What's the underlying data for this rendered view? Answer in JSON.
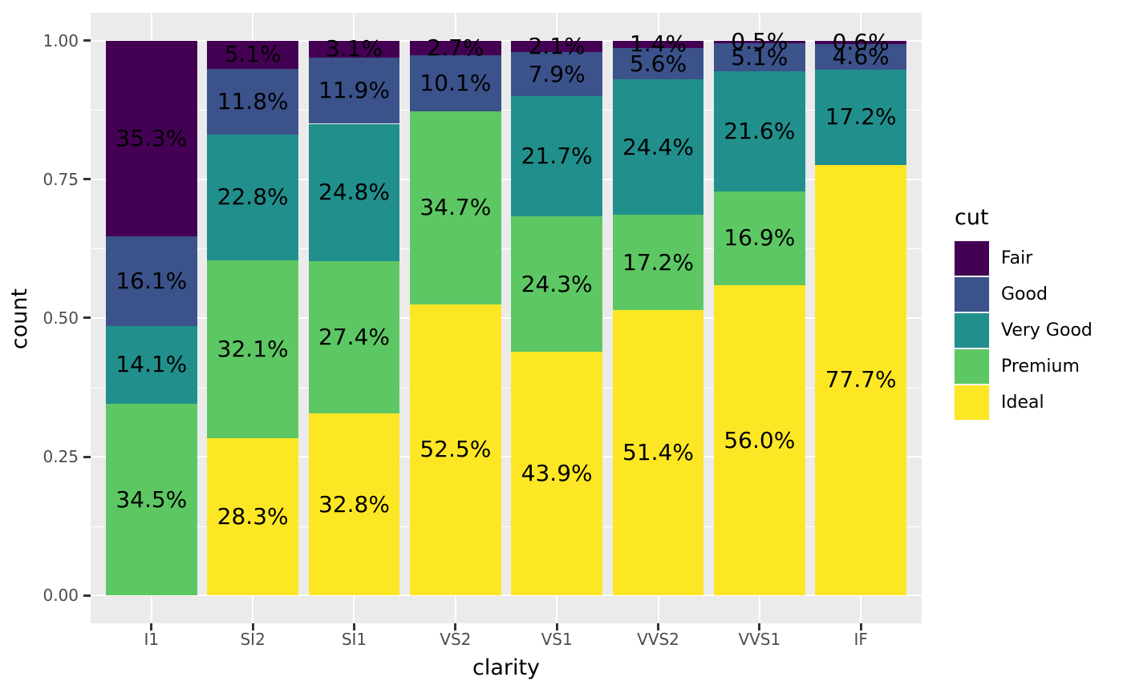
{
  "figure": {
    "background_color": "#FFFFFF",
    "panel_background_color": "#EBEBEB",
    "grid_color": "#FFFFFF",
    "tick_mark_color": "#333333",
    "tick_label_color": "#4D4D4D",
    "title_color": "#000000"
  },
  "axes": {
    "x_title": "clarity",
    "y_title": "count",
    "y_ticks": [
      {
        "label": "1.00",
        "value": 1.0
      },
      {
        "label": "0.75",
        "value": 0.75
      },
      {
        "label": "0.50",
        "value": 0.5
      },
      {
        "label": "0.25",
        "value": 0.25
      },
      {
        "label": "0.00",
        "value": 0.0
      }
    ],
    "y_minor_gridlines": [
      0.875,
      0.625,
      0.375,
      0.125
    ],
    "x_ticks": [
      "I1",
      "SI2",
      "SI1",
      "VS2",
      "VS1",
      "VVS2",
      "VVS1",
      "IF"
    ]
  },
  "legend": {
    "title": "cut",
    "position": "right",
    "entries": [
      {
        "label": "Fair",
        "color": "#440154"
      },
      {
        "label": "Good",
        "color": "#3B528B"
      },
      {
        "label": "Very Good",
        "color": "#21908C"
      },
      {
        "label": "Premium",
        "color": "#5DC863"
      },
      {
        "label": "Ideal",
        "color": "#FDE725"
      }
    ]
  },
  "chart_data": {
    "type": "bar",
    "stacking": "fill",
    "orientation": "vertical",
    "title": "",
    "xlabel": "clarity",
    "ylabel": "count",
    "ylim": [
      0,
      1
    ],
    "grid": true,
    "legend_title": "cut",
    "legend_position": "right",
    "value_label_format": "percent of column, one decimal",
    "categories": [
      "I1",
      "SI2",
      "SI1",
      "VS2",
      "VS1",
      "VVS2",
      "VVS1",
      "IF"
    ],
    "series_order_note": "listed top-to-bottom in each stacked column; Ideal is the bottom segment",
    "series": [
      {
        "name": "Fair",
        "color": "#440154",
        "values": [
          35.3,
          5.1,
          3.1,
          2.7,
          2.1,
          1.4,
          0.5,
          0.6
        ],
        "labels": [
          "35.3%",
          "5.1%",
          "3.1%",
          "2.7%",
          "2.1%",
          "1.4%",
          "0.5%",
          "0.6%"
        ]
      },
      {
        "name": "Good",
        "color": "#3B528B",
        "values": [
          16.1,
          11.8,
          11.9,
          10.1,
          7.9,
          5.6,
          5.1,
          4.6
        ],
        "labels": [
          "16.1%",
          "11.8%",
          "11.9%",
          "10.1%",
          "7.9%",
          "5.6%",
          "5.1%",
          "4.6%"
        ]
      },
      {
        "name": "Very Good",
        "color": "#21908C",
        "values": [
          14.1,
          22.8,
          24.8,
          0,
          21.7,
          24.4,
          21.6,
          17.2
        ],
        "labels": [
          "14.1%",
          "22.8%",
          "24.8%",
          null,
          "21.7%",
          "24.4%",
          "21.6%",
          "17.2%"
        ]
      },
      {
        "name": "Premium",
        "color": "#5DC863",
        "values": [
          34.5,
          32.1,
          27.4,
          34.7,
          24.3,
          17.2,
          16.9,
          0
        ],
        "labels": [
          "34.5%",
          "32.1%",
          "27.4%",
          "34.7%",
          "24.3%",
          "17.2%",
          "16.9%",
          null
        ]
      },
      {
        "name": "Ideal",
        "color": "#FDE725",
        "values": [
          0,
          28.3,
          32.8,
          52.5,
          43.9,
          51.4,
          56.0,
          77.7
        ],
        "labels": [
          null,
          "28.3%",
          "32.8%",
          "52.5%",
          "43.9%",
          "51.4%",
          "56.0%",
          "77.7%"
        ]
      }
    ]
  }
}
